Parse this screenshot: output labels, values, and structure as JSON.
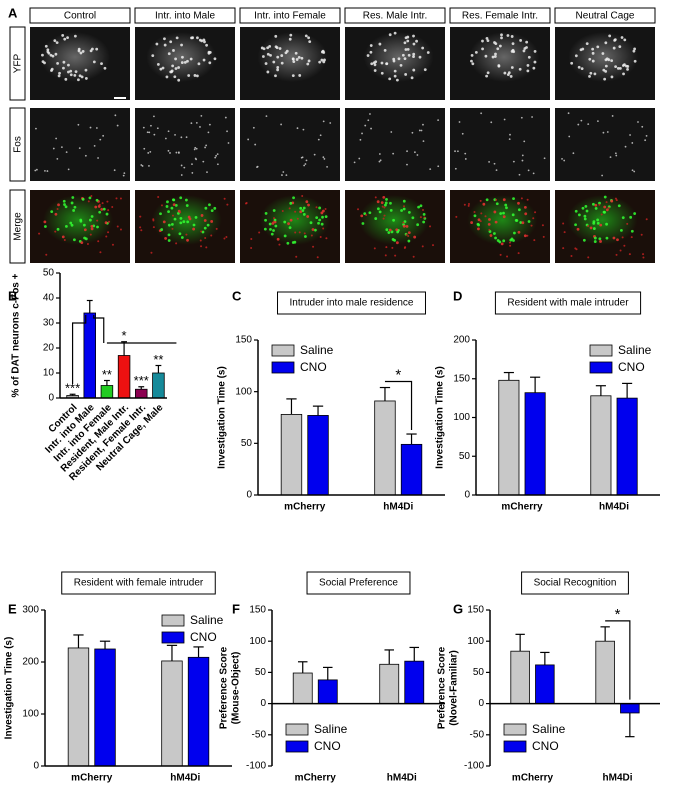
{
  "panel_a": {
    "label": "A",
    "columns": [
      "Control",
      "Intr. into Male",
      "Intr. into Female",
      "Res. Male Intr.",
      "Res. Female Intr.",
      "Neutral Cage"
    ],
    "rows": [
      "YFP",
      "Fos",
      "Merge"
    ]
  },
  "chart_data": [
    {
      "type": "bar",
      "panel": "B",
      "ylabel": [
        "% of DAT neurons c-Fos +"
      ],
      "categories": [
        "Control",
        "Intr. into Male",
        "Intr. into Female",
        "Resident, Male Intr.",
        "Resident, Female Intr.",
        "Neutral Cage, Male"
      ],
      "values": [
        1,
        34,
        5,
        17,
        3.5,
        10
      ],
      "errors": [
        0.5,
        5,
        2,
        5.5,
        1,
        3
      ],
      "colors": [
        "#aaaaaa",
        "#0000ee",
        "#22cc22",
        "#ee1111",
        "#8b0050",
        "#168a9a"
      ],
      "annotations": [
        {
          "index": 0,
          "text": "***"
        },
        {
          "index": 2,
          "text": "**"
        },
        {
          "index": 3,
          "text": "*"
        },
        {
          "index": 4,
          "text": "***"
        },
        {
          "index": 5,
          "text": "**"
        }
      ],
      "ylim": [
        0,
        50
      ],
      "yticks": [
        0,
        10,
        20,
        30,
        40,
        50
      ]
    },
    {
      "type": "grouped-bar",
      "panel": "C",
      "title": "Intruder into male residence",
      "ylabel": [
        "Investigation Time (s)"
      ],
      "categories": [
        "mCherry",
        "hM4Di"
      ],
      "series": [
        {
          "name": "Saline",
          "color": "#c8c8c8",
          "values": [
            78,
            91
          ],
          "errors": [
            15,
            13
          ]
        },
        {
          "name": "CNO",
          "color": "#0000ee",
          "values": [
            77,
            49
          ],
          "errors": [
            9,
            10
          ]
        }
      ],
      "significance": [
        {
          "index": 1,
          "text": "*"
        }
      ],
      "legend": "upper left",
      "ylim": [
        0,
        150
      ],
      "yticks": [
        0,
        50,
        100,
        150
      ]
    },
    {
      "type": "grouped-bar",
      "panel": "D",
      "title": "Resident with male intruder",
      "ylabel": [
        "Investigation Time (s)"
      ],
      "categories": [
        "mCherry",
        "hM4Di"
      ],
      "series": [
        {
          "name": "Saline",
          "color": "#c8c8c8",
          "values": [
            148,
            128
          ],
          "errors": [
            10,
            13
          ]
        },
        {
          "name": "CNO",
          "color": "#0000ee",
          "values": [
            132,
            125
          ],
          "errors": [
            20,
            19
          ]
        }
      ],
      "legend": "upper right",
      "ylim": [
        0,
        200
      ],
      "yticks": [
        0,
        50,
        100,
        150,
        200
      ]
    },
    {
      "type": "grouped-bar",
      "panel": "E",
      "title": "Resident with female intruder",
      "ylabel": [
        "Investigation Time (s)"
      ],
      "categories": [
        "mCherry",
        "hM4Di"
      ],
      "series": [
        {
          "name": "Saline",
          "color": "#c8c8c8",
          "values": [
            227,
            202
          ],
          "errors": [
            25,
            30
          ]
        },
        {
          "name": "CNO",
          "color": "#0000ee",
          "values": [
            225,
            209
          ],
          "errors": [
            15,
            20
          ]
        }
      ],
      "legend": "upper right",
      "ylim": [
        0,
        300
      ],
      "yticks": [
        0,
        100,
        200,
        300
      ]
    },
    {
      "type": "grouped-bar",
      "panel": "F",
      "title": "Social Preference",
      "ylabel": [
        "Preference Score",
        "(Mouse-Object)"
      ],
      "categories": [
        "mCherry",
        "hM4Di"
      ],
      "series": [
        {
          "name": "Saline",
          "color": "#c8c8c8",
          "values": [
            49,
            63
          ],
          "errors": [
            18,
            23
          ]
        },
        {
          "name": "CNO",
          "color": "#0000ee",
          "values": [
            38,
            68
          ],
          "errors": [
            20,
            22
          ]
        }
      ],
      "legend": "lower left",
      "ylim": [
        -100,
        150
      ],
      "yticks": [
        -100,
        -50,
        0,
        50,
        100,
        150
      ]
    },
    {
      "type": "grouped-bar",
      "panel": "G",
      "title": "Social Recognition",
      "ylabel": [
        "Preference Score",
        "(Novel-Familiar)"
      ],
      "categories": [
        "mCherry",
        "hM4Di"
      ],
      "series": [
        {
          "name": "Saline",
          "color": "#c8c8c8",
          "values": [
            84,
            100
          ],
          "errors": [
            27,
            23
          ]
        },
        {
          "name": "CNO",
          "color": "#0000ee",
          "values": [
            62,
            -15
          ],
          "errors": [
            20,
            38
          ]
        }
      ],
      "significance": [
        {
          "index": 1,
          "text": "*"
        }
      ],
      "legend": "lower left",
      "ylim": [
        -100,
        150
      ],
      "yticks": [
        -100,
        -50,
        0,
        50,
        100,
        150
      ]
    }
  ]
}
